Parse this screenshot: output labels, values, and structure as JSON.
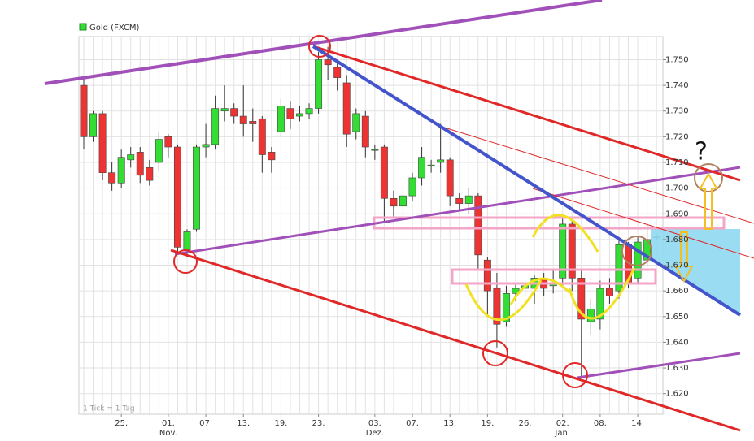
{
  "chart_data": {
    "type": "candlestick",
    "legend": "top-left",
    "grid": true,
    "footnote": "1 Tick = 1 Tag",
    "annotation": "?",
    "categories": [
      null,
      null,
      null,
      null,
      "25.",
      null,
      null,
      null,
      null,
      "01.",
      null,
      null,
      null,
      "07.",
      null,
      null,
      null,
      "13.",
      null,
      null,
      null,
      "19.",
      null,
      null,
      null,
      "23.",
      null,
      null,
      null,
      null,
      null,
      "03.",
      null,
      null,
      null,
      "07.",
      null,
      null,
      null,
      "13.",
      null,
      null,
      null,
      "19.",
      null,
      null,
      null,
      "26.",
      null,
      null,
      null,
      "02.",
      null,
      null,
      null,
      "08.",
      null,
      null,
      null,
      "14.",
      null,
      null
    ],
    "category_sublabels": [
      null,
      null,
      null,
      null,
      null,
      null,
      null,
      null,
      null,
      "Nov.",
      null,
      null,
      null,
      null,
      null,
      null,
      null,
      null,
      null,
      null,
      null,
      null,
      null,
      null,
      null,
      null,
      null,
      null,
      null,
      null,
      null,
      "Dez.",
      null,
      null,
      null,
      null,
      null,
      null,
      null,
      null,
      null,
      null,
      null,
      null,
      null,
      null,
      null,
      null,
      null,
      null,
      null,
      "Jan.",
      null,
      null,
      null,
      null,
      null,
      null,
      null,
      null,
      null,
      null
    ],
    "ylim": [
      1.612,
      1.759
    ],
    "yticks": [
      {
        "value": 1.62,
        "label": "1.620"
      },
      {
        "value": 1.63,
        "label": "1.630"
      },
      {
        "value": 1.64,
        "label": "1.640"
      },
      {
        "value": 1.65,
        "label": "1.650"
      },
      {
        "value": 1.66,
        "label": "1.660"
      },
      {
        "value": 1.67,
        "label": "1.670"
      },
      {
        "value": 1.68,
        "label": "1.680"
      },
      {
        "value": 1.69,
        "label": "1.690"
      },
      {
        "value": 1.7,
        "label": "1.700"
      },
      {
        "value": 1.71,
        "label": "1.710"
      },
      {
        "value": 1.72,
        "label": "1.720"
      },
      {
        "value": 1.73,
        "label": "1.730"
      },
      {
        "value": 1.74,
        "label": "1.740"
      },
      {
        "value": 1.75,
        "label": "1.750"
      }
    ],
    "series": [
      {
        "name": "Gold (FXCM)",
        "color_up": "#33dd33",
        "color_down": "#ee3333",
        "open": [
          1.74,
          1.72,
          1.729,
          1.706,
          1.702,
          1.711,
          1.714,
          1.708,
          1.71,
          1.72,
          1.716,
          1.676,
          1.684,
          1.716,
          1.717,
          1.73,
          1.731,
          1.728,
          1.726,
          1.727,
          1.714,
          1.722,
          1.731,
          1.728,
          1.729,
          1.731,
          1.75,
          1.747,
          1.741,
          1.722,
          1.728,
          1.715,
          1.716,
          1.696,
          1.693,
          1.697,
          1.704,
          1.709,
          1.71,
          1.711,
          1.696,
          1.694,
          1.697,
          1.672,
          1.661,
          1.648,
          1.659,
          1.661,
          1.661,
          1.665,
          1.662,
          1.665,
          1.686,
          1.665,
          1.648,
          1.649,
          1.661,
          1.66,
          1.678,
          1.665,
          1.672,
          1.681
        ],
        "high": [
          1.743,
          1.73,
          1.73,
          1.71,
          1.715,
          1.716,
          1.716,
          1.711,
          1.722,
          1.721,
          1.717,
          1.684,
          1.717,
          1.725,
          1.736,
          1.74,
          1.733,
          1.74,
          1.731,
          1.728,
          1.716,
          1.735,
          1.734,
          1.732,
          1.733,
          1.753,
          1.755,
          1.749,
          1.744,
          1.731,
          1.73,
          1.717,
          1.717,
          1.699,
          1.702,
          1.706,
          1.716,
          1.711,
          1.725,
          1.712,
          1.698,
          1.7,
          1.698,
          1.673,
          1.667,
          1.662,
          1.663,
          1.664,
          1.666,
          1.667,
          1.668,
          1.69,
          1.688,
          1.668,
          1.657,
          1.664,
          1.665,
          1.68,
          1.679,
          1.681,
          1.686,
          1.682
        ],
        "low": [
          1.715,
          1.718,
          1.703,
          1.699,
          1.7,
          1.708,
          1.702,
          1.701,
          1.707,
          1.712,
          1.675,
          1.673,
          1.683,
          1.712,
          1.715,
          1.726,
          1.725,
          1.72,
          1.718,
          1.706,
          1.706,
          1.72,
          1.723,
          1.726,
          1.727,
          1.729,
          1.742,
          1.738,
          1.716,
          1.719,
          1.712,
          1.711,
          1.687,
          1.688,
          1.685,
          1.695,
          1.701,
          1.706,
          1.706,
          1.693,
          1.691,
          1.69,
          1.668,
          1.65,
          1.638,
          1.646,
          1.656,
          1.658,
          1.655,
          1.658,
          1.659,
          1.662,
          1.66,
          1.626,
          1.643,
          1.645,
          1.655,
          1.657,
          1.661,
          1.663,
          1.67,
          1.68
        ],
        "close": [
          1.72,
          1.729,
          1.706,
          1.702,
          1.712,
          1.713,
          1.705,
          1.703,
          1.719,
          1.716,
          1.677,
          1.683,
          1.716,
          1.717,
          1.731,
          1.731,
          1.728,
          1.725,
          1.725,
          1.713,
          1.711,
          1.732,
          1.727,
          1.729,
          1.731,
          1.75,
          1.748,
          1.743,
          1.721,
          1.729,
          1.716,
          1.715,
          1.696,
          1.693,
          1.697,
          1.704,
          1.712,
          1.709,
          1.711,
          1.697,
          1.694,
          1.697,
          1.674,
          1.66,
          1.647,
          1.659,
          1.661,
          1.662,
          1.665,
          1.661,
          1.663,
          1.686,
          1.665,
          1.649,
          1.653,
          1.661,
          1.658,
          1.678,
          1.663,
          1.679,
          1.68,
          1.681
        ]
      }
    ]
  }
}
